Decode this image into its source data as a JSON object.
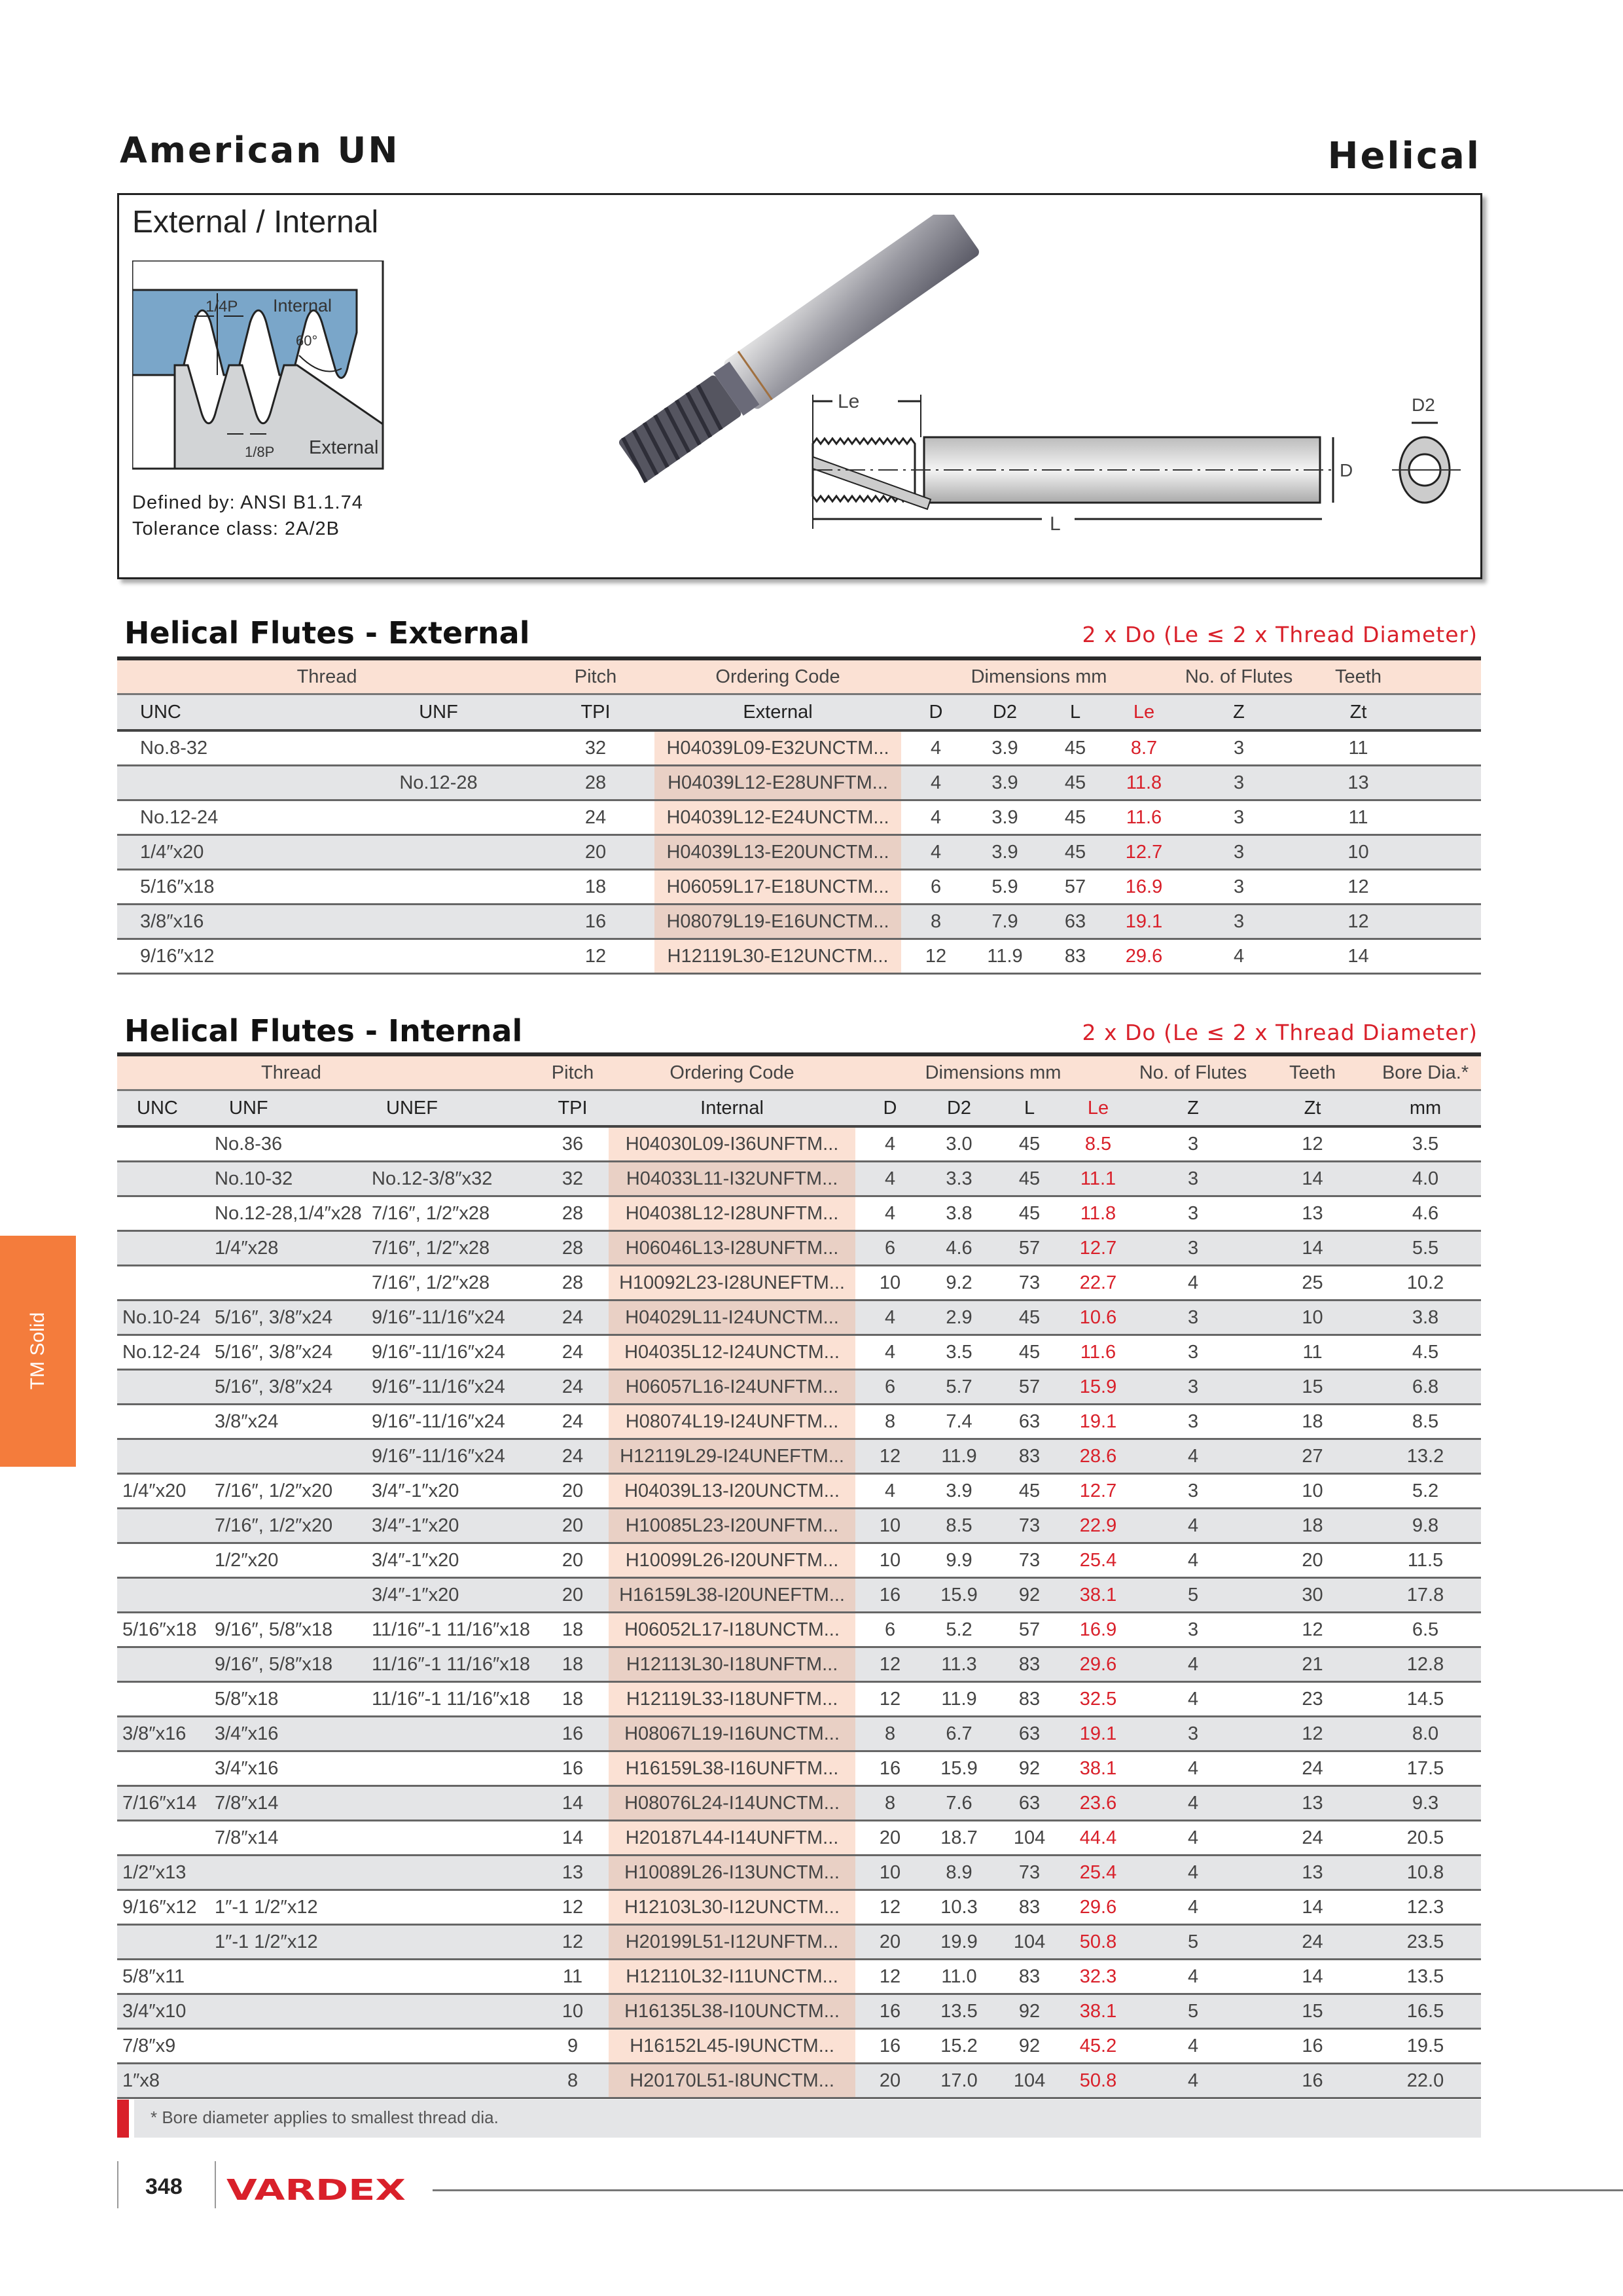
{
  "header": {
    "title": "American UN",
    "category": "Helical"
  },
  "overview": {
    "title": "External / Internal",
    "profile_labels": {
      "quarter_pitch": "1/4P",
      "internal": "Internal",
      "angle": "60°",
      "eighth_pitch": "1/8P",
      "external": "External"
    },
    "drawing_labels": {
      "le": "Le",
      "l": "L",
      "d": "D",
      "d2": "D2"
    },
    "defined_by": "Defined by: ANSI B1.1.74",
    "tolerance": "Tolerance class: 2A/2B"
  },
  "side_tab": {
    "label": "TM Solid",
    "color": "#f47c3c"
  },
  "colors": {
    "accent_red": "#d9202a",
    "header_peach": "#fbe1d4",
    "row_grey": "#e4e5e7"
  },
  "external": {
    "title": "Helical Flutes - External",
    "note": "2 x Do (Le ≤ 2 x Thread Diameter)",
    "group_headers": {
      "thread": "Thread",
      "pitch": "Pitch",
      "ordering": "Ordering Code",
      "dimensions": "Dimensions mm",
      "flutes": "No. of Flutes",
      "teeth": "Teeth"
    },
    "columns": {
      "unc": "UNC",
      "unf": "UNF",
      "tpi": "TPI",
      "code": "External",
      "d": "D",
      "d2": "D2",
      "l": "L",
      "le": "Le",
      "z": "Z",
      "zt": "Zt"
    },
    "rows": [
      {
        "unc": "No.8-32",
        "unf": "",
        "tpi": "32",
        "code": "H04039L09-E32UNCTM...",
        "d": "4",
        "d2": "3.9",
        "l": "45",
        "le": "8.7",
        "z": "3",
        "zt": "11"
      },
      {
        "unc": "",
        "unf": "No.12-28",
        "tpi": "28",
        "code": "H04039L12-E28UNFTM...",
        "d": "4",
        "d2": "3.9",
        "l": "45",
        "le": "11.8",
        "z": "3",
        "zt": "13"
      },
      {
        "unc": "No.12-24",
        "unf": "",
        "tpi": "24",
        "code": "H04039L12-E24UNCTM...",
        "d": "4",
        "d2": "3.9",
        "l": "45",
        "le": "11.6",
        "z": "3",
        "zt": "11"
      },
      {
        "unc": "1/4″x20",
        "unf": "",
        "tpi": "20",
        "code": "H04039L13-E20UNCTM...",
        "d": "4",
        "d2": "3.9",
        "l": "45",
        "le": "12.7",
        "z": "3",
        "zt": "10"
      },
      {
        "unc": "5/16″x18",
        "unf": "",
        "tpi": "18",
        "code": "H06059L17-E18UNCTM...",
        "d": "6",
        "d2": "5.9",
        "l": "57",
        "le": "16.9",
        "z": "3",
        "zt": "12"
      },
      {
        "unc": "3/8″x16",
        "unf": "",
        "tpi": "16",
        "code": "H08079L19-E16UNCTM...",
        "d": "8",
        "d2": "7.9",
        "l": "63",
        "le": "19.1",
        "z": "3",
        "zt": "12"
      },
      {
        "unc": "9/16″x12",
        "unf": "",
        "tpi": "12",
        "code": "H12119L30-E12UNCTM...",
        "d": "12",
        "d2": "11.9",
        "l": "83",
        "le": "29.6",
        "z": "4",
        "zt": "14"
      }
    ]
  },
  "internal": {
    "title": "Helical Flutes - Internal",
    "note": "2 x Do (Le ≤ 2 x Thread Diameter)",
    "group_headers": {
      "thread": "Thread",
      "pitch": "Pitch",
      "ordering": "Ordering Code",
      "dimensions": "Dimensions mm",
      "flutes": "No. of Flutes",
      "teeth": "Teeth",
      "bore": "Bore Dia.*"
    },
    "columns": {
      "unc": "UNC",
      "unf": "UNF",
      "unef": "UNEF",
      "tpi": "TPI",
      "code": "Internal",
      "d": "D",
      "d2": "D2",
      "l": "L",
      "le": "Le",
      "z": "Z",
      "zt": "Zt",
      "bore": "mm"
    },
    "rows": [
      {
        "unc": "",
        "unf": "No.8-36",
        "unef": "",
        "tpi": "36",
        "code": "H04030L09-I36UNFTM...",
        "d": "4",
        "d2": "3.0",
        "l": "45",
        "le": "8.5",
        "z": "3",
        "zt": "12",
        "bore": "3.5"
      },
      {
        "unc": "",
        "unf": "No.10-32",
        "unef": "No.12-3/8″x32",
        "tpi": "32",
        "code": "H04033L11-I32UNFTM...",
        "d": "4",
        "d2": "3.3",
        "l": "45",
        "le": "11.1",
        "z": "3",
        "zt": "14",
        "bore": "4.0"
      },
      {
        "unc": "",
        "unf": "No.12-28,1/4″x28",
        "unef": "7/16″, 1/2″x28",
        "tpi": "28",
        "code": "H04038L12-I28UNFTM...",
        "d": "4",
        "d2": "3.8",
        "l": "45",
        "le": "11.8",
        "z": "3",
        "zt": "13",
        "bore": "4.6"
      },
      {
        "unc": "",
        "unf": "1/4″x28",
        "unef": "7/16″, 1/2″x28",
        "tpi": "28",
        "code": "H06046L13-I28UNFTM...",
        "d": "6",
        "d2": "4.6",
        "l": "57",
        "le": "12.7",
        "z": "3",
        "zt": "14",
        "bore": "5.5"
      },
      {
        "unc": "",
        "unf": "",
        "unef": "7/16″, 1/2″x28",
        "tpi": "28",
        "code": "H10092L23-I28UNEFTM...",
        "d": "10",
        "d2": "9.2",
        "l": "73",
        "le": "22.7",
        "z": "4",
        "zt": "25",
        "bore": "10.2"
      },
      {
        "unc": "No.10-24",
        "unf": "5/16″, 3/8″x24",
        "unef": "9/16″-11/16″x24",
        "tpi": "24",
        "code": "H04029L11-I24UNCTM...",
        "d": "4",
        "d2": "2.9",
        "l": "45",
        "le": "10.6",
        "z": "3",
        "zt": "10",
        "bore": "3.8"
      },
      {
        "unc": "No.12-24",
        "unf": "5/16″, 3/8″x24",
        "unef": "9/16″-11/16″x24",
        "tpi": "24",
        "code": "H04035L12-I24UNCTM...",
        "d": "4",
        "d2": "3.5",
        "l": "45",
        "le": "11.6",
        "z": "3",
        "zt": "11",
        "bore": "4.5"
      },
      {
        "unc": "",
        "unf": "5/16″, 3/8″x24",
        "unef": "9/16″-11/16″x24",
        "tpi": "24",
        "code": "H06057L16-I24UNFTM...",
        "d": "6",
        "d2": "5.7",
        "l": "57",
        "le": "15.9",
        "z": "3",
        "zt": "15",
        "bore": "6.8"
      },
      {
        "unc": "",
        "unf": "3/8″x24",
        "unef": "9/16″-11/16″x24",
        "tpi": "24",
        "code": "H08074L19-I24UNFTM...",
        "d": "8",
        "d2": "7.4",
        "l": "63",
        "le": "19.1",
        "z": "3",
        "zt": "18",
        "bore": "8.5"
      },
      {
        "unc": "",
        "unf": "",
        "unef": "9/16″-11/16″x24",
        "tpi": "24",
        "code": "H12119L29-I24UNEFTM...",
        "d": "12",
        "d2": "11.9",
        "l": "83",
        "le": "28.6",
        "z": "4",
        "zt": "27",
        "bore": "13.2"
      },
      {
        "unc": "1/4″x20",
        "unf": "7/16″, 1/2″x20",
        "unef": "3/4″-1″x20",
        "tpi": "20",
        "code": "H04039L13-I20UNCTM...",
        "d": "4",
        "d2": "3.9",
        "l": "45",
        "le": "12.7",
        "z": "3",
        "zt": "10",
        "bore": "5.2"
      },
      {
        "unc": "",
        "unf": "7/16″, 1/2″x20",
        "unef": "3/4″-1″x20",
        "tpi": "20",
        "code": "H10085L23-I20UNFTM...",
        "d": "10",
        "d2": "8.5",
        "l": "73",
        "le": "22.9",
        "z": "4",
        "zt": "18",
        "bore": "9.8"
      },
      {
        "unc": "",
        "unf": "1/2″x20",
        "unef": "3/4″-1″x20",
        "tpi": "20",
        "code": "H10099L26-I20UNFTM...",
        "d": "10",
        "d2": "9.9",
        "l": "73",
        "le": "25.4",
        "z": "4",
        "zt": "20",
        "bore": "11.5"
      },
      {
        "unc": "",
        "unf": "",
        "unef": "3/4″-1″x20",
        "tpi": "20",
        "code": "H16159L38-I20UNEFTM...",
        "d": "16",
        "d2": "15.9",
        "l": "92",
        "le": "38.1",
        "z": "5",
        "zt": "30",
        "bore": "17.8"
      },
      {
        "unc": "5/16″x18",
        "unf": "9/16″, 5/8″x18",
        "unef": "11/16″-1 11/16″x18",
        "tpi": "18",
        "code": "H06052L17-I18UNCTM...",
        "d": "6",
        "d2": "5.2",
        "l": "57",
        "le": "16.9",
        "z": "3",
        "zt": "12",
        "bore": "6.5"
      },
      {
        "unc": "",
        "unf": "9/16″, 5/8″x18",
        "unef": "11/16″-1 11/16″x18",
        "tpi": "18",
        "code": "H12113L30-I18UNFTM...",
        "d": "12",
        "d2": "11.3",
        "l": "83",
        "le": "29.6",
        "z": "4",
        "zt": "21",
        "bore": "12.8"
      },
      {
        "unc": "",
        "unf": "5/8″x18",
        "unef": "11/16″-1 11/16″x18",
        "tpi": "18",
        "code": "H12119L33-I18UNFTM...",
        "d": "12",
        "d2": "11.9",
        "l": "83",
        "le": "32.5",
        "z": "4",
        "zt": "23",
        "bore": "14.5"
      },
      {
        "unc": "3/8″x16",
        "unf": "3/4″x16",
        "unef": "",
        "tpi": "16",
        "code": "H08067L19-I16UNCTM...",
        "d": "8",
        "d2": "6.7",
        "l": "63",
        "le": "19.1",
        "z": "3",
        "zt": "12",
        "bore": "8.0"
      },
      {
        "unc": "",
        "unf": "3/4″x16",
        "unef": "",
        "tpi": "16",
        "code": "H16159L38-I16UNFTM...",
        "d": "16",
        "d2": "15.9",
        "l": "92",
        "le": "38.1",
        "z": "4",
        "zt": "24",
        "bore": "17.5"
      },
      {
        "unc": "7/16″x14",
        "unf": "7/8″x14",
        "unef": "",
        "tpi": "14",
        "code": "H08076L24-I14UNCTM...",
        "d": "8",
        "d2": "7.6",
        "l": "63",
        "le": "23.6",
        "z": "4",
        "zt": "13",
        "bore": "9.3"
      },
      {
        "unc": "",
        "unf": "7/8″x14",
        "unef": "",
        "tpi": "14",
        "code": "H20187L44-I14UNFTM...",
        "d": "20",
        "d2": "18.7",
        "l": "104",
        "le": "44.4",
        "z": "4",
        "zt": "24",
        "bore": "20.5"
      },
      {
        "unc": "1/2″x13",
        "unf": "",
        "unef": "",
        "tpi": "13",
        "code": "H10089L26-I13UNCTM...",
        "d": "10",
        "d2": "8.9",
        "l": "73",
        "le": "25.4",
        "z": "4",
        "zt": "13",
        "bore": "10.8"
      },
      {
        "unc": "9/16″x12",
        "unf": "1″-1 1/2″x12",
        "unef": "",
        "tpi": "12",
        "code": "H12103L30-I12UNCTM...",
        "d": "12",
        "d2": "10.3",
        "l": "83",
        "le": "29.6",
        "z": "4",
        "zt": "14",
        "bore": "12.3"
      },
      {
        "unc": "",
        "unf": "1″-1 1/2″x12",
        "unef": "",
        "tpi": "12",
        "code": "H20199L51-I12UNFTM...",
        "d": "20",
        "d2": "19.9",
        "l": "104",
        "le": "50.8",
        "z": "5",
        "zt": "24",
        "bore": "23.5"
      },
      {
        "unc": "5/8″x11",
        "unf": "",
        "unef": "",
        "tpi": "11",
        "code": "H12110L32-I11UNCTM...",
        "d": "12",
        "d2": "11.0",
        "l": "83",
        "le": "32.3",
        "z": "4",
        "zt": "14",
        "bore": "13.5"
      },
      {
        "unc": "3/4″x10",
        "unf": "",
        "unef": "",
        "tpi": "10",
        "code": "H16135L38-I10UNCTM...",
        "d": "16",
        "d2": "13.5",
        "l": "92",
        "le": "38.1",
        "z": "5",
        "zt": "15",
        "bore": "16.5"
      },
      {
        "unc": "7/8″x9",
        "unf": "",
        "unef": "",
        "tpi": "9",
        "code": "H16152L45-I9UNCTM...",
        "d": "16",
        "d2": "15.2",
        "l": "92",
        "le": "45.2",
        "z": "4",
        "zt": "16",
        "bore": "19.5"
      },
      {
        "unc": "1″x8",
        "unf": "",
        "unef": "",
        "tpi": "8",
        "code": "H20170L51-I8UNCTM...",
        "d": "20",
        "d2": "17.0",
        "l": "104",
        "le": "50.8",
        "z": "4",
        "zt": "16",
        "bore": "22.0"
      }
    ]
  },
  "footnote": "*  Bore diameter applies to smallest thread dia.",
  "footer": {
    "page_number": "348",
    "brand": "VARDEX"
  }
}
